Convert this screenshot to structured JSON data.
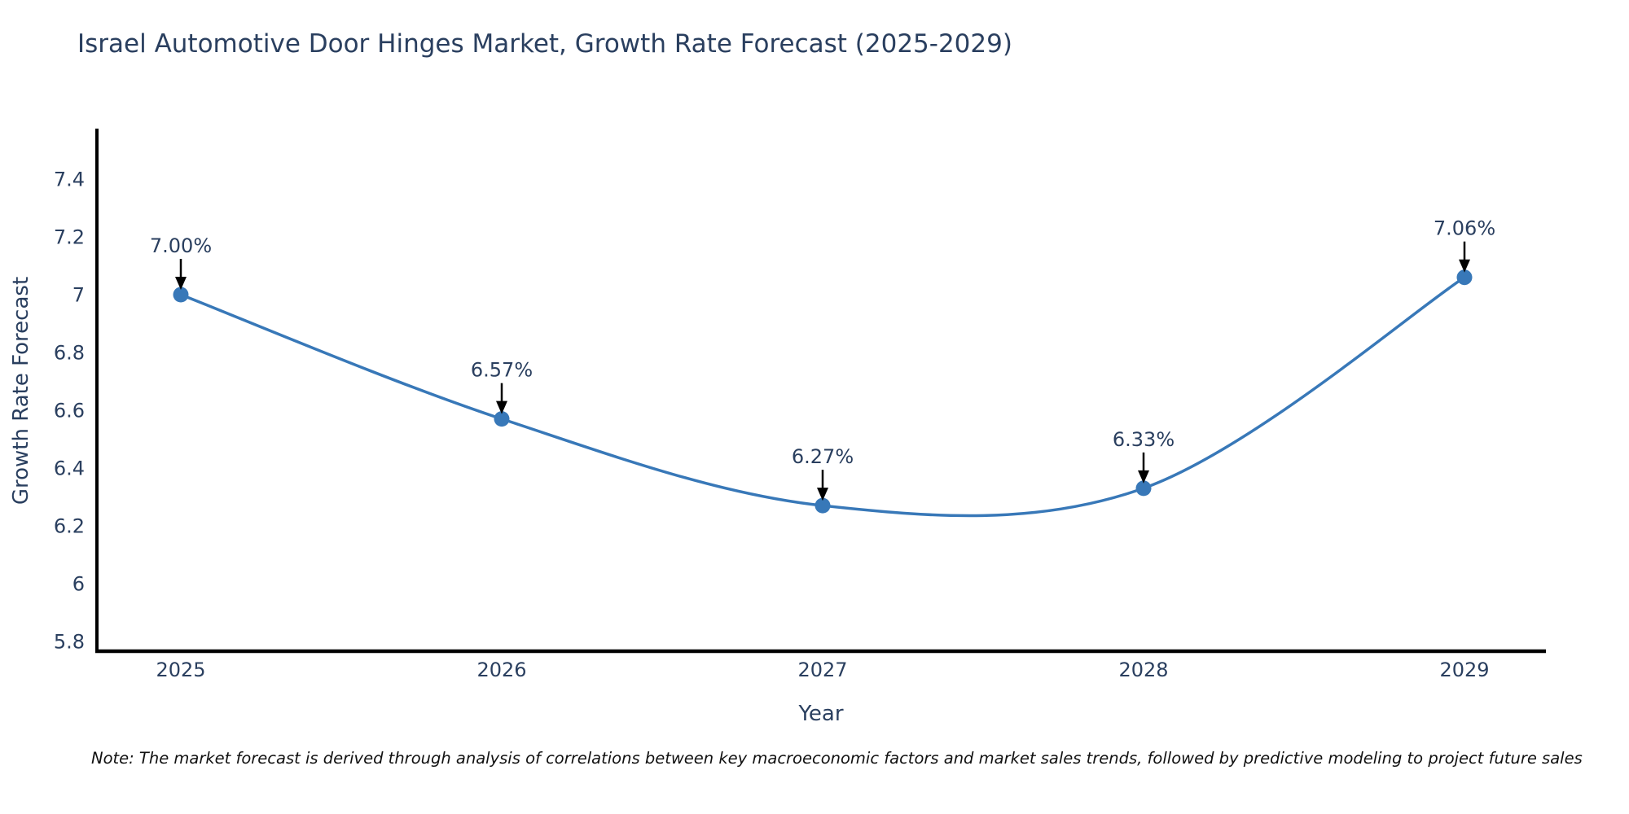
{
  "title": "Israel Automotive Door Hinges Market, Growth Rate Forecast (2025-2029)",
  "note": "Note: The market forecast is derived through analysis of correlations between key macroeconomic factors and market sales trends, followed by predictive modeling to project future sales",
  "colors": {
    "accent": "#3878b8",
    "text": "#2a3f5f",
    "axis": "#000000",
    "annotation_arrow": "#000000",
    "note_text": "#111111",
    "background": "#ffffff"
  },
  "chart_data": {
    "type": "line",
    "x": [
      "2025",
      "2026",
      "2027",
      "2028",
      "2029"
    ],
    "values": [
      7.0,
      6.57,
      6.27,
      6.33,
      7.06
    ],
    "point_labels": [
      "7.00%",
      "6.57%",
      "6.27%",
      "6.33%",
      "7.06%"
    ],
    "title": "Israel Automotive Door Hinges Market, Growth Rate Forecast (2025-2029)",
    "xlabel": "Year",
    "ylabel": "Growth Rate Forecast",
    "y_ticks": [
      5.8,
      6,
      6.2,
      6.4,
      6.6,
      6.8,
      7,
      7.2,
      7.4
    ],
    "ylim": [
      5.77,
      7.57
    ],
    "grid": false,
    "legend": "none",
    "line_shape": "spline",
    "marker": "circle",
    "annotation_arrows": true
  }
}
